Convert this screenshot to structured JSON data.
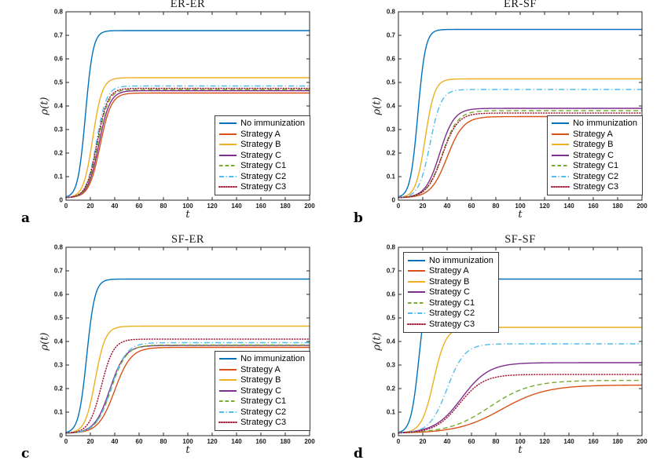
{
  "figure": {
    "description": "Four-panel line figure comparing immunization strategies: infection density rho(t) versus time t",
    "axis_color": "#262626",
    "legend_border_color": "#3c3c3c"
  },
  "chart_data": [
    {
      "type": "line",
      "panel_label": "a",
      "title": "ER-ER",
      "xlabel": "t",
      "ylabel": "ρ(t)",
      "xlim": [
        0,
        200
      ],
      "ylim": [
        0,
        0.8
      ],
      "xtick_step": 20,
      "ytick_step": 0.1,
      "grid": false,
      "legend_position": "southeast",
      "curve_model": "logistic",
      "series": [
        {
          "name": "No immunization",
          "color": "#0072BD",
          "line_style": "solid",
          "start": 0.01,
          "plateau": 0.72,
          "t_half": 16,
          "k": 0.32
        },
        {
          "name": "Strategy A",
          "color": "#D95319",
          "line_style": "solid",
          "start": 0.01,
          "plateau": 0.455,
          "t_half": 28,
          "k": 0.22
        },
        {
          "name": "Strategy B",
          "color": "#EDB120",
          "line_style": "solid",
          "start": 0.01,
          "plateau": 0.52,
          "t_half": 22,
          "k": 0.26
        },
        {
          "name": "Strategy C",
          "color": "#7E2F8E",
          "line_style": "solid",
          "start": 0.01,
          "plateau": 0.465,
          "t_half": 27,
          "k": 0.22
        },
        {
          "name": "Strategy C1",
          "color": "#77AC30",
          "line_style": "dashed",
          "start": 0.01,
          "plateau": 0.47,
          "t_half": 26,
          "k": 0.23
        },
        {
          "name": "Strategy C2",
          "color": "#4DBEEE",
          "line_style": "dashdot",
          "start": 0.01,
          "plateau": 0.485,
          "t_half": 25,
          "k": 0.24
        },
        {
          "name": "Strategy C3",
          "color": "#A2142F",
          "line_style": "dotted",
          "start": 0.01,
          "plateau": 0.475,
          "t_half": 25.5,
          "k": 0.23
        }
      ]
    },
    {
      "type": "line",
      "panel_label": "b",
      "title": "ER-SF",
      "xlabel": "t",
      "ylabel": "ρ(t)",
      "xlim": [
        0,
        200
      ],
      "ylim": [
        0,
        0.8
      ],
      "xtick_step": 20,
      "ytick_step": 0.1,
      "grid": false,
      "legend_position": "southeast",
      "curve_model": "logistic",
      "series": [
        {
          "name": "No immunization",
          "color": "#0072BD",
          "line_style": "solid",
          "start": 0.01,
          "plateau": 0.725,
          "t_half": 16,
          "k": 0.32
        },
        {
          "name": "Strategy A",
          "color": "#D95319",
          "line_style": "solid",
          "start": 0.01,
          "plateau": 0.355,
          "t_half": 40,
          "k": 0.15
        },
        {
          "name": "Strategy B",
          "color": "#EDB120",
          "line_style": "solid",
          "start": 0.01,
          "plateau": 0.515,
          "t_half": 22,
          "k": 0.26
        },
        {
          "name": "Strategy C",
          "color": "#7E2F8E",
          "line_style": "solid",
          "start": 0.01,
          "plateau": 0.39,
          "t_half": 34,
          "k": 0.17
        },
        {
          "name": "Strategy C1",
          "color": "#77AC30",
          "line_style": "dashed",
          "start": 0.01,
          "plateau": 0.38,
          "t_half": 36,
          "k": 0.16
        },
        {
          "name": "Strategy C2",
          "color": "#4DBEEE",
          "line_style": "dashdot",
          "start": 0.01,
          "plateau": 0.47,
          "t_half": 26,
          "k": 0.22
        },
        {
          "name": "Strategy C3",
          "color": "#A2142F",
          "line_style": "dotted",
          "start": 0.01,
          "plateau": 0.37,
          "t_half": 36,
          "k": 0.16
        }
      ]
    },
    {
      "type": "line",
      "panel_label": "c",
      "title": "SF-ER",
      "xlabel": "t",
      "ylabel": "ρ(t)",
      "xlim": [
        0,
        200
      ],
      "ylim": [
        0,
        0.8
      ],
      "xtick_step": 20,
      "ytick_step": 0.1,
      "grid": false,
      "legend_position": "southeast",
      "curve_model": "logistic",
      "series": [
        {
          "name": "No immunization",
          "color": "#0072BD",
          "line_style": "solid",
          "start": 0.01,
          "plateau": 0.665,
          "t_half": 17,
          "k": 0.3
        },
        {
          "name": "Strategy A",
          "color": "#D95319",
          "line_style": "solid",
          "start": 0.01,
          "plateau": 0.375,
          "t_half": 40,
          "k": 0.15
        },
        {
          "name": "Strategy B",
          "color": "#EDB120",
          "line_style": "solid",
          "start": 0.01,
          "plateau": 0.465,
          "t_half": 24,
          "k": 0.24
        },
        {
          "name": "Strategy C",
          "color": "#7E2F8E",
          "line_style": "solid",
          "start": 0.01,
          "plateau": 0.383,
          "t_half": 36,
          "k": 0.16
        },
        {
          "name": "Strategy C1",
          "color": "#77AC30",
          "line_style": "dashed",
          "start": 0.01,
          "plateau": 0.385,
          "t_half": 37,
          "k": 0.16
        },
        {
          "name": "Strategy C2",
          "color": "#4DBEEE",
          "line_style": "dashdot",
          "start": 0.01,
          "plateau": 0.395,
          "t_half": 37,
          "k": 0.16
        },
        {
          "name": "Strategy C3",
          "color": "#A2142F",
          "line_style": "dotted",
          "start": 0.01,
          "plateau": 0.41,
          "t_half": 29,
          "k": 0.2
        }
      ]
    },
    {
      "type": "line",
      "panel_label": "d",
      "title": "SF-SF",
      "xlabel": "t",
      "ylabel": "ρ(t)",
      "xlim": [
        0,
        200
      ],
      "ylim": [
        0,
        0.8
      ],
      "xtick_step": 20,
      "ytick_step": 0.1,
      "grid": false,
      "legend_position": "northwest",
      "curve_model": "logistic",
      "series": [
        {
          "name": "No immunization",
          "color": "#0072BD",
          "line_style": "solid",
          "start": 0.01,
          "plateau": 0.665,
          "t_half": 17,
          "k": 0.3
        },
        {
          "name": "Strategy A",
          "color": "#D95319",
          "line_style": "solid",
          "start": 0.01,
          "plateau": 0.215,
          "t_half": 85,
          "k": 0.055
        },
        {
          "name": "Strategy B",
          "color": "#EDB120",
          "line_style": "solid",
          "start": 0.01,
          "plateau": 0.46,
          "t_half": 29,
          "k": 0.2
        },
        {
          "name": "Strategy C",
          "color": "#7E2F8E",
          "line_style": "solid",
          "start": 0.01,
          "plateau": 0.31,
          "t_half": 52,
          "k": 0.09
        },
        {
          "name": "Strategy C1",
          "color": "#77AC30",
          "line_style": "dashed",
          "start": 0.01,
          "plateau": 0.235,
          "t_half": 75,
          "k": 0.06
        },
        {
          "name": "Strategy C2",
          "color": "#4DBEEE",
          "line_style": "dashdot",
          "start": 0.01,
          "plateau": 0.39,
          "t_half": 40,
          "k": 0.14
        },
        {
          "name": "Strategy C3",
          "color": "#A2142F",
          "line_style": "dotted",
          "start": 0.01,
          "plateau": 0.26,
          "t_half": 50,
          "k": 0.1
        }
      ]
    }
  ]
}
